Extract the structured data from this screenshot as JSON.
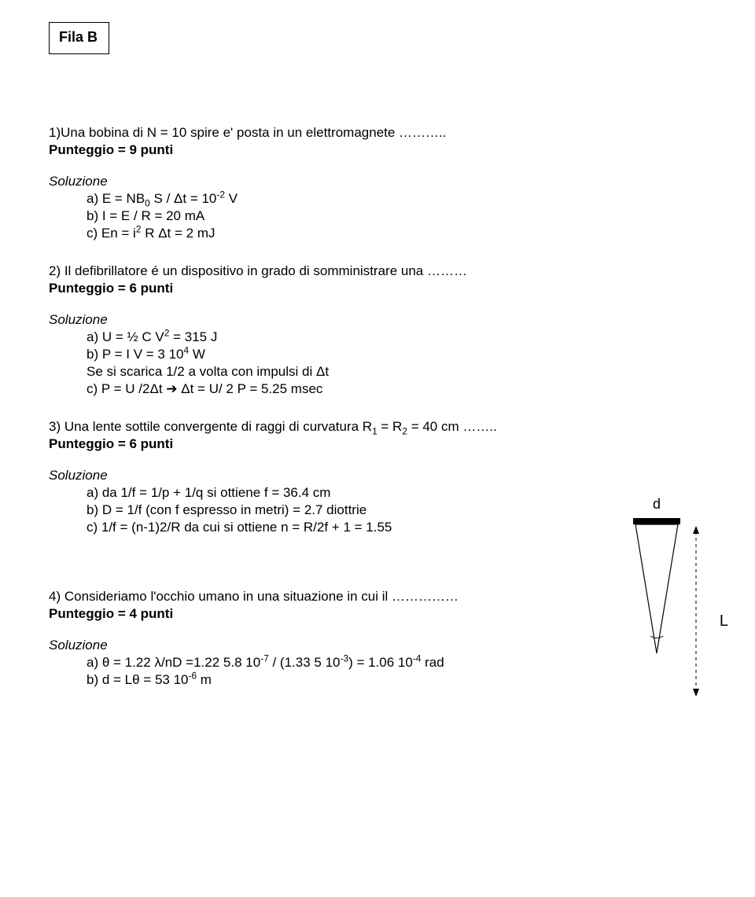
{
  "header": {
    "fila": "Fila B"
  },
  "problems": {
    "p1": {
      "intro": "1)Una bobina di N = 10 spire e' posta in un elettromagnete ………..",
      "score": "Punteggio = 9 punti",
      "solution_label": "Soluzione",
      "a_html": "a) E = NB<sub>0</sub> S / Δt = 10<sup>-2</sup> V",
      "b_html": "b) I = E / R = 20 mA",
      "c_html": "c) En = i<sup>2</sup> R Δt = 2 mJ"
    },
    "p2": {
      "intro": "2) Il defibrillatore é un dispositivo in grado di somministrare una ………",
      "score": "Punteggio = 6 punti",
      "solution_label": "Soluzione",
      "a_html": "a) U = ½ C V<sup>2</sup> = 315 J",
      "b_html": "b) P = I V = 3 10<sup>4</sup> W",
      "c_line": "Se si scarica 1/2 a volta con impulsi di Δt",
      "c2_html": "c) P = U /2Δt ➔  Δt  = U/ 2 P  = 5.25 msec"
    },
    "p3": {
      "intro_html": "3) Una lente sottile convergente di raggi di curvatura R<sub>1</sub> = R<sub>2</sub> = 40 cm ……..",
      "score": "Punteggio = 6 punti",
      "solution_label": "Soluzione",
      "a": "a) da 1/f = 1/p + 1/q si ottiene f = 36.4 cm",
      "b": "b) D = 1/f (con f espresso in metri) = 2.7 diottrie",
      "c": "c) 1/f = (n-1)2/R da cui si ottiene n = R/2f + 1 = 1.55"
    },
    "p4": {
      "intro": "4) Consideriamo l'occhio umano in una situazione in cui il ……………",
      "score": "Punteggio = 4 punti",
      "solution_label": "Soluzione",
      "a_html": "a) θ = 1.22 λ/nD =1.22 5.8 10<sup>-7</sup> / (1.33 5 10<sup>-3</sup>) = 1.06 10<sup>-4</sup> rad",
      "b_html": "b) d = Lθ = 53 10<sup>-6</sup> m"
    }
  },
  "diagram": {
    "d_label": "d",
    "l_label": "L",
    "stroke": "#000000",
    "cone_fill": "#ffffff",
    "dash": "4,4"
  }
}
